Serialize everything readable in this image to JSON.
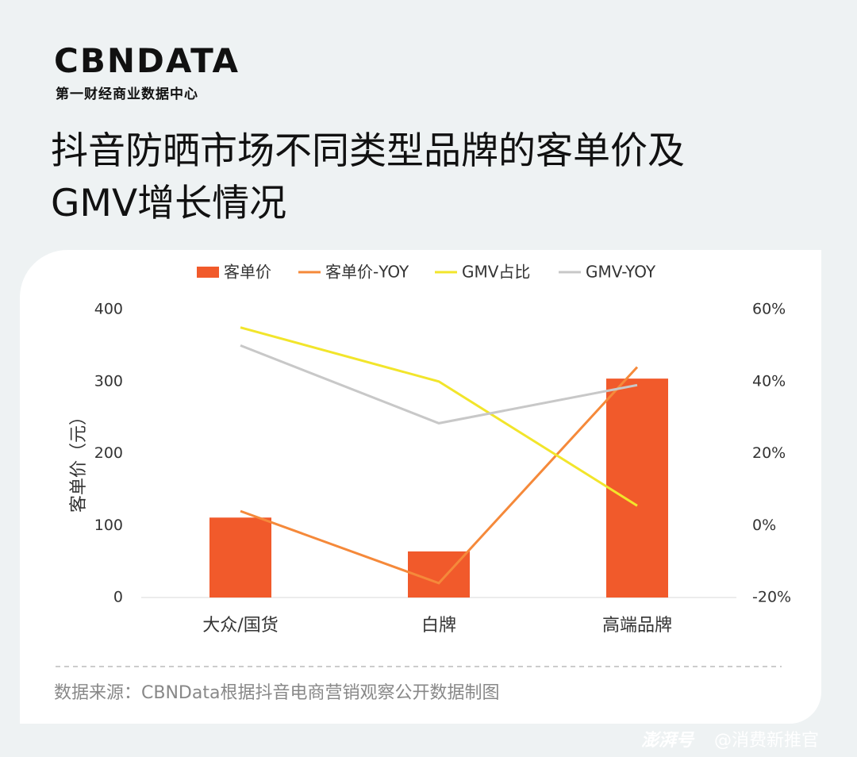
{
  "header": {
    "logo": "CBNDATA",
    "logo_subtitle": "第一财经商业数据中心"
  },
  "chart_data": {
    "type": "bar_line",
    "title": "抖音防晒市场不同类型品牌的客单价及GMV增长情况",
    "categories": [
      "大众/国货",
      "白牌",
      "高端品牌"
    ],
    "ylabel": "客单价（元）",
    "ylim": [
      0,
      400
    ],
    "yticks": [
      0,
      100,
      200,
      300,
      400
    ],
    "y2lim": [
      -20,
      60
    ],
    "y2ticks": [
      {
        "value": -20,
        "label": "-20%"
      },
      {
        "value": 0,
        "label": "0%"
      },
      {
        "value": 20,
        "label": "20%"
      },
      {
        "value": 40,
        "label": "40%"
      },
      {
        "value": 60,
        "label": "60%"
      }
    ],
    "grid": false,
    "series": [
      {
        "name": "客单价",
        "type": "bar",
        "color": "#f15a2b",
        "values": [
          111,
          64,
          304
        ]
      },
      {
        "name": "客单价-YOY",
        "type": "line",
        "axis": "y2",
        "color": "#f5893a",
        "values": [
          4,
          -16,
          44
        ]
      },
      {
        "name": "GMV占比",
        "type": "line",
        "axis": "y2",
        "color": "#f2e52b",
        "values": [
          55,
          40,
          5.5
        ]
      },
      {
        "name": "GMV-YOY",
        "type": "line",
        "axis": "y2",
        "color": "#c8c8c8",
        "values": [
          50,
          28.4,
          39
        ]
      }
    ],
    "source": "数据来源：CBNData根据抖音电商营销观察公开数据制图"
  },
  "footer": {
    "platform": "澎湃号",
    "author": "@消费新推官"
  }
}
